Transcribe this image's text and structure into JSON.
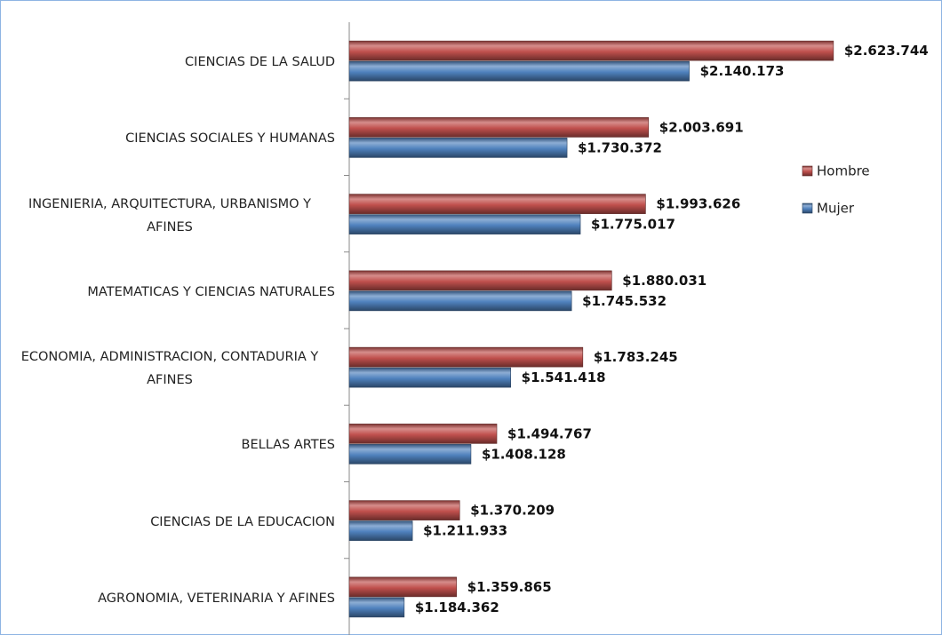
{
  "chart_data": {
    "type": "barh",
    "categories": [
      "CIENCIAS DE LA SALUD",
      "CIENCIAS SOCIALES Y HUMANAS",
      "INGENIERIA, ARQUITECTURA, URBANISMO Y AFINES",
      "MATEMATICAS Y CIENCIAS NATURALES",
      "ECONOMIA, ADMINISTRACION, CONTADURIA Y AFINES",
      "BELLAS ARTES",
      "CIENCIAS DE LA EDUCACION",
      "AGRONOMIA, VETERINARIA Y AFINES"
    ],
    "series": [
      {
        "name": "Hombre",
        "color": "#c0504d",
        "values": [
          2623744,
          2003691,
          1993626,
          1880031,
          1783245,
          1494767,
          1370209,
          1359865
        ],
        "value_labels": [
          "$2.623.744",
          "$2.003.691",
          "$1.993.626",
          "$1.880.031",
          "$1.783.245",
          "$1.494.767",
          "$1.370.209",
          "$1.359.865"
        ]
      },
      {
        "name": "Mujer",
        "color": "#4f81bd",
        "values": [
          2140173,
          1730372,
          1775017,
          1745532,
          1541418,
          1408128,
          1211933,
          1184362
        ],
        "value_labels": [
          "$2.140.173",
          "$1.730.372",
          "$1.775.017",
          "$1.745.532",
          "$1.541.418",
          "$1.408.128",
          "$1.211.933",
          "$1.184.362"
        ]
      }
    ],
    "xlim": [
      1000000,
      2800000
    ],
    "legend": "right"
  }
}
